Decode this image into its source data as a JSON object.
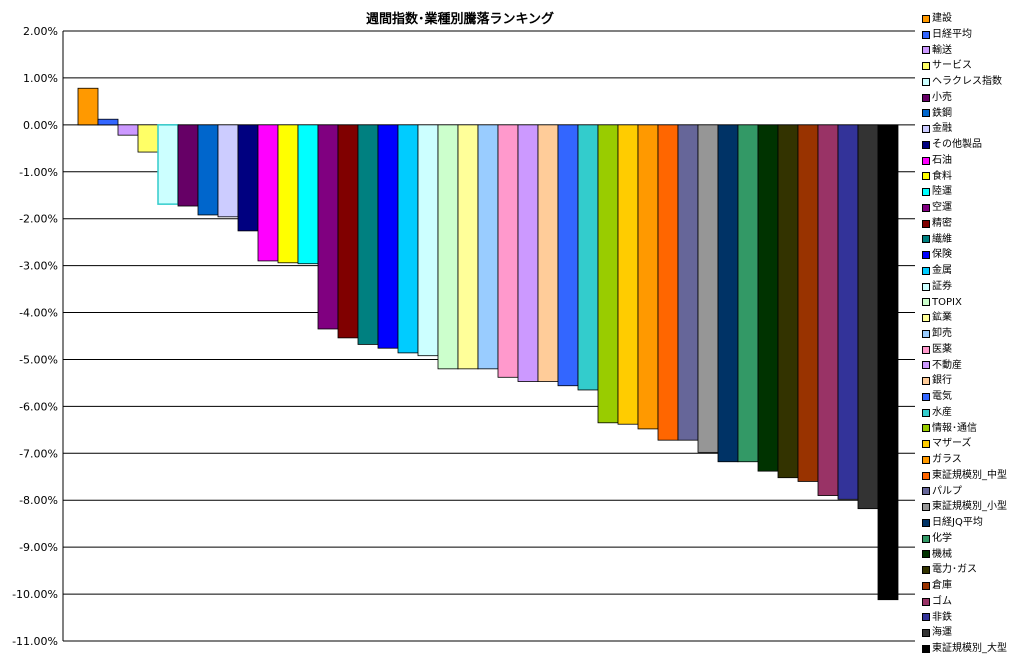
{
  "chart_data": {
    "type": "bar",
    "title": "週間指数･業種別騰落ランキング",
    "xlabel": "",
    "ylabel": "",
    "ylim": [
      -11,
      2
    ],
    "y_unit": "%",
    "yticks": [
      "2.00%",
      "1.00%",
      "0.00%",
      "-1.00%",
      "-2.00%",
      "-3.00%",
      "-4.00%",
      "-5.00%",
      "-6.00%",
      "-7.00%",
      "-8.00%",
      "-9.00%",
      "-10.00%",
      "-11.00%"
    ],
    "grid": true,
    "legend_position": "right",
    "series": [
      {
        "name": "建設",
        "value": 0.78,
        "color": "#FF9900"
      },
      {
        "name": "日経平均",
        "value": 0.12,
        "color": "#3366FF"
      },
      {
        "name": "輸送",
        "value": -0.22,
        "color": "#CC99FF"
      },
      {
        "name": "サービス",
        "value": -0.58,
        "color": "#FFFF66"
      },
      {
        "name": "ヘラクレス指数",
        "value": -1.69,
        "color": "#CCFFFF",
        "border": "#33CCCC"
      },
      {
        "name": "小売",
        "value": -1.73,
        "color": "#660066"
      },
      {
        "name": "鉄鋼",
        "value": -1.92,
        "color": "#0066CC"
      },
      {
        "name": "金融",
        "value": -1.96,
        "color": "#CCCCFF"
      },
      {
        "name": "その他製品",
        "value": -2.26,
        "color": "#000080"
      },
      {
        "name": "石油",
        "value": -2.9,
        "color": "#FF00FF"
      },
      {
        "name": "食料",
        "value": -2.94,
        "color": "#FFFF00"
      },
      {
        "name": "陸運",
        "value": -2.96,
        "color": "#00FFFF"
      },
      {
        "name": "空運",
        "value": -4.35,
        "color": "#800080"
      },
      {
        "name": "精密",
        "value": -4.54,
        "color": "#800000"
      },
      {
        "name": "繊維",
        "value": -4.68,
        "color": "#008080"
      },
      {
        "name": "保険",
        "value": -4.76,
        "color": "#0000FF"
      },
      {
        "name": "金属",
        "value": -4.86,
        "color": "#00CCFF"
      },
      {
        "name": "証券",
        "value": -4.92,
        "color": "#CCFFFF"
      },
      {
        "name": "TOPIX",
        "value": -5.2,
        "color": "#CCFFCC"
      },
      {
        "name": "鉱業",
        "value": -5.2,
        "color": "#FFFF99"
      },
      {
        "name": "卸売",
        "value": -5.2,
        "color": "#99CCFF"
      },
      {
        "name": "医薬",
        "value": -5.38,
        "color": "#FF99CC"
      },
      {
        "name": "不動産",
        "value": -5.47,
        "color": "#CC99FF"
      },
      {
        "name": "銀行",
        "value": -5.47,
        "color": "#FFCC99"
      },
      {
        "name": "電気",
        "value": -5.56,
        "color": "#3366FF"
      },
      {
        "name": "水産",
        "value": -5.65,
        "color": "#33CCCC"
      },
      {
        "name": "情報･通信",
        "value": -6.35,
        "color": "#99CC00"
      },
      {
        "name": "マザーズ",
        "value": -6.38,
        "color": "#FFCC00"
      },
      {
        "name": "ガラス",
        "value": -6.48,
        "color": "#FF9900"
      },
      {
        "name": "東証規模別_中型",
        "value": -6.72,
        "color": "#FF6600"
      },
      {
        "name": "パルプ",
        "value": -6.72,
        "color": "#666699"
      },
      {
        "name": "東証規模別_小型",
        "value": -6.98,
        "color": "#969696"
      },
      {
        "name": "日経JQ平均",
        "value": -7.18,
        "color": "#003366"
      },
      {
        "name": "化学",
        "value": -7.18,
        "color": "#339966"
      },
      {
        "name": "機械",
        "value": -7.38,
        "color": "#003300"
      },
      {
        "name": "電力･ガス",
        "value": -7.52,
        "color": "#333300"
      },
      {
        "name": "倉庫",
        "value": -7.6,
        "color": "#993300"
      },
      {
        "name": "ゴム",
        "value": -7.9,
        "color": "#993366"
      },
      {
        "name": "非鉄",
        "value": -7.98,
        "color": "#333399"
      },
      {
        "name": "海運",
        "value": -8.18,
        "color": "#333333"
      },
      {
        "name": "東証規模別_大型",
        "value": -10.12,
        "color": "#000000"
      }
    ]
  }
}
